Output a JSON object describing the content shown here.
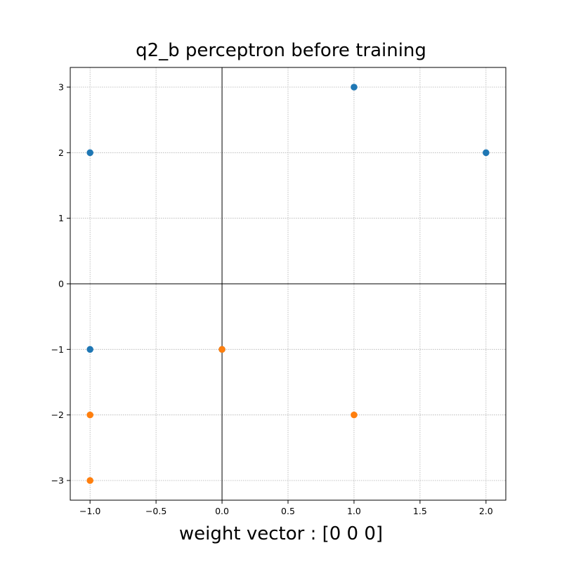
{
  "chart_data": {
    "type": "scatter",
    "title": "q2_b perceptron before training",
    "xlabel": "weight vector : [0 0 0]",
    "ylabel": "",
    "xlim": [
      -1.15,
      2.15
    ],
    "ylim": [
      -3.3,
      3.3
    ],
    "x_ticks": [
      -1.0,
      -0.5,
      0.0,
      0.5,
      1.0,
      1.5,
      2.0
    ],
    "x_tick_labels": [
      "−1.0",
      "−0.5",
      "0.0",
      "0.5",
      "1.0",
      "1.5",
      "2.0"
    ],
    "y_ticks": [
      -3,
      -2,
      -1,
      0,
      1,
      2,
      3
    ],
    "y_tick_labels": [
      "−3",
      "−2",
      "−1",
      "0",
      "1",
      "2",
      "3"
    ],
    "grid": true,
    "zero_lines": true,
    "series": [
      {
        "color": "#1f77b4",
        "points": [
          [
            1,
            3
          ],
          [
            -1,
            2
          ],
          [
            2,
            2
          ],
          [
            -1,
            -1
          ],
          [
            0,
            -1
          ]
        ]
      },
      {
        "color": "#ff7f0e",
        "points": [
          [
            0,
            -1
          ],
          [
            -1,
            -2
          ],
          [
            1,
            -2
          ],
          [
            -1,
            -3
          ]
        ]
      }
    ]
  }
}
